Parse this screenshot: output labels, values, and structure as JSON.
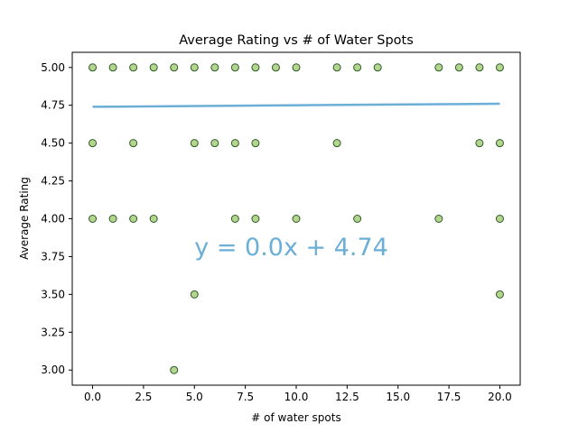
{
  "chart_data": {
    "type": "scatter",
    "title": "Average Rating vs # of Water Spots",
    "xlabel": "# of water spots",
    "ylabel": "Average Rating",
    "xlim": [
      -1,
      21
    ],
    "ylim": [
      2.9,
      5.1
    ],
    "xticks": [
      0,
      2.5,
      5,
      7.5,
      10,
      12.5,
      15,
      17.5,
      20
    ],
    "xtick_labels": [
      "0.0",
      "2.5",
      "5.0",
      "7.5",
      "10.0",
      "12.5",
      "15.0",
      "17.5",
      "20.0"
    ],
    "yticks": [
      3.0,
      3.25,
      3.5,
      3.75,
      4.0,
      4.25,
      4.5,
      4.75,
      5.0
    ],
    "ytick_labels": [
      "3.00",
      "3.25",
      "3.50",
      "3.75",
      "4.00",
      "4.25",
      "4.50",
      "4.75",
      "5.00"
    ],
    "grid": false,
    "marker_color": "#b5d48c",
    "marker_edge_color": "#2a5a2a",
    "line_color": "#6baed6",
    "points": [
      {
        "x": 0,
        "y": 5.0
      },
      {
        "x": 1,
        "y": 5.0
      },
      {
        "x": 2,
        "y": 5.0
      },
      {
        "x": 3,
        "y": 5.0
      },
      {
        "x": 4,
        "y": 5.0
      },
      {
        "x": 5,
        "y": 5.0
      },
      {
        "x": 6,
        "y": 5.0
      },
      {
        "x": 7,
        "y": 5.0
      },
      {
        "x": 8,
        "y": 5.0
      },
      {
        "x": 9,
        "y": 5.0
      },
      {
        "x": 10,
        "y": 5.0
      },
      {
        "x": 12,
        "y": 5.0
      },
      {
        "x": 13,
        "y": 5.0
      },
      {
        "x": 14,
        "y": 5.0
      },
      {
        "x": 17,
        "y": 5.0
      },
      {
        "x": 18,
        "y": 5.0
      },
      {
        "x": 19,
        "y": 5.0
      },
      {
        "x": 20,
        "y": 5.0
      },
      {
        "x": 0,
        "y": 4.5
      },
      {
        "x": 2,
        "y": 4.5
      },
      {
        "x": 5,
        "y": 4.5
      },
      {
        "x": 6,
        "y": 4.5
      },
      {
        "x": 7,
        "y": 4.5
      },
      {
        "x": 8,
        "y": 4.5
      },
      {
        "x": 12,
        "y": 4.5
      },
      {
        "x": 19,
        "y": 4.5
      },
      {
        "x": 20,
        "y": 4.5
      },
      {
        "x": 0,
        "y": 4.0
      },
      {
        "x": 1,
        "y": 4.0
      },
      {
        "x": 2,
        "y": 4.0
      },
      {
        "x": 3,
        "y": 4.0
      },
      {
        "x": 7,
        "y": 4.0
      },
      {
        "x": 8,
        "y": 4.0
      },
      {
        "x": 10,
        "y": 4.0
      },
      {
        "x": 13,
        "y": 4.0
      },
      {
        "x": 17,
        "y": 4.0
      },
      {
        "x": 20,
        "y": 4.0
      },
      {
        "x": 5,
        "y": 3.5
      },
      {
        "x": 20,
        "y": 3.5
      },
      {
        "x": 4,
        "y": 3.0
      }
    ],
    "regression": {
      "slope": 0.001,
      "intercept": 4.74,
      "x_range": [
        0,
        20
      ]
    },
    "annotation": {
      "text": "y = 0.0x + 4.74",
      "x": 5,
      "y": 3.76
    }
  }
}
